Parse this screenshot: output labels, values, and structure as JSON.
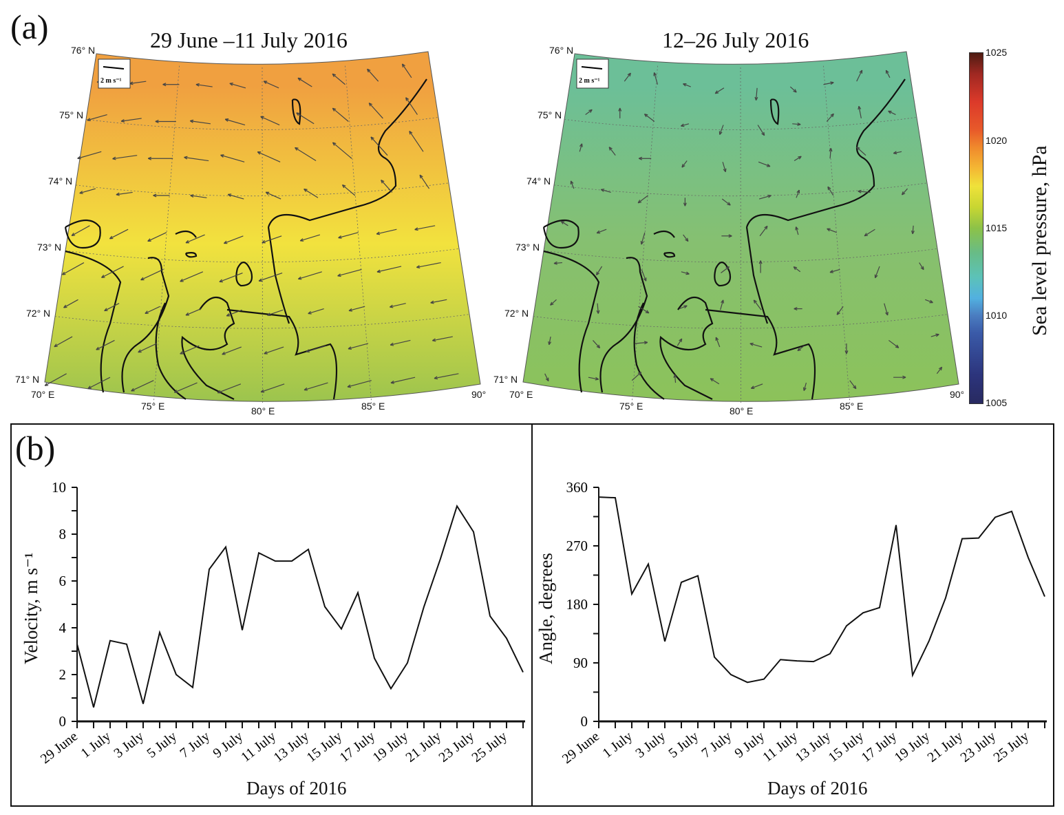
{
  "panel_a": {
    "label": "(a)",
    "maps": [
      {
        "title": "29 June –11 July 2016",
        "color_top": "#f0a040",
        "color_mid": "#f2e23e",
        "color_bottom": "#9cc44e"
      },
      {
        "title": "12–26 July 2016",
        "color_top": "#6cbf98",
        "color_mid": "#86c070",
        "color_bottom": "#8cc25a"
      }
    ],
    "lat_labels": [
      "76° N",
      "75° N",
      "74° N",
      "73° N",
      "72° N",
      "71° N"
    ],
    "lon_labels": [
      "70° E",
      "75° E",
      "80° E",
      "85° E",
      "90°"
    ],
    "scale_arrow_label": "2 m s⁻¹",
    "colorbar": {
      "title": "Sea level pressure, hPa",
      "ticks": [
        "1025",
        "1020",
        "1015",
        "1010",
        "1005"
      ],
      "range": [
        1005,
        1025
      ]
    }
  },
  "panel_b": {
    "label": "(b)"
  },
  "chart_data": [
    {
      "type": "line",
      "xlabel": "Days of 2016",
      "ylabel": "Velocity, m s⁻¹",
      "ylim": [
        0,
        10
      ],
      "yticks": [
        "0",
        "2",
        "4",
        "6",
        "8",
        "10"
      ],
      "x_tick_labels": [
        "29 June",
        "1 July",
        "3 July",
        "5 July",
        "7 July",
        "9 July",
        "11 July",
        "13 July",
        "15 July",
        "17 July",
        "19 July",
        "21 July",
        "23 July",
        "25 July"
      ],
      "x": [
        "29 June",
        "30 June",
        "1 July",
        "2 July",
        "3 July",
        "4 July",
        "5 July",
        "6 July",
        "7 July",
        "8 July",
        "9 July",
        "10 July",
        "11 July",
        "12 July",
        "13 July",
        "14 July",
        "15 July",
        "16 July",
        "17 July",
        "18 July",
        "19 July",
        "20 July",
        "21 July",
        "22 July",
        "23 July",
        "24 July",
        "25 July",
        "26 July"
      ],
      "values": [
        3.3,
        0.6,
        3.45,
        3.3,
        0.75,
        3.8,
        2.0,
        1.45,
        6.5,
        7.45,
        3.9,
        7.2,
        6.85,
        6.85,
        7.35,
        4.9,
        3.95,
        5.5,
        2.7,
        1.4,
        2.5,
        4.9,
        6.95,
        9.2,
        8.1,
        4.5,
        3.55,
        2.1
      ]
    },
    {
      "type": "line",
      "xlabel": "Days of 2016",
      "ylabel": "Angle, degrees",
      "ylim": [
        0,
        360
      ],
      "yticks": [
        "0",
        "90",
        "180",
        "270",
        "360"
      ],
      "x_tick_labels": [
        "29 June",
        "1 July",
        "3 July",
        "5 July",
        "7 July",
        "9 July",
        "11 July",
        "13 July",
        "15 July",
        "17 July",
        "19 July",
        "21 July",
        "23 July",
        "25 July"
      ],
      "x": [
        "29 June",
        "30 June",
        "1 July",
        "2 July",
        "3 July",
        "4 July",
        "5 July",
        "6 July",
        "7 July",
        "8 July",
        "9 July",
        "10 July",
        "11 July",
        "12 July",
        "13 July",
        "14 July",
        "15 July",
        "16 July",
        "17 July",
        "18 July",
        "19 July",
        "20 July",
        "21 July",
        "22 July",
        "23 July",
        "24 July",
        "25 July",
        "26 July"
      ],
      "values": [
        345,
        344,
        196,
        242,
        123,
        214,
        224,
        99,
        72,
        60,
        65,
        95,
        93,
        92,
        104,
        147,
        167,
        175,
        302,
        71,
        124,
        190,
        281,
        282,
        314,
        323,
        252,
        192
      ]
    }
  ]
}
